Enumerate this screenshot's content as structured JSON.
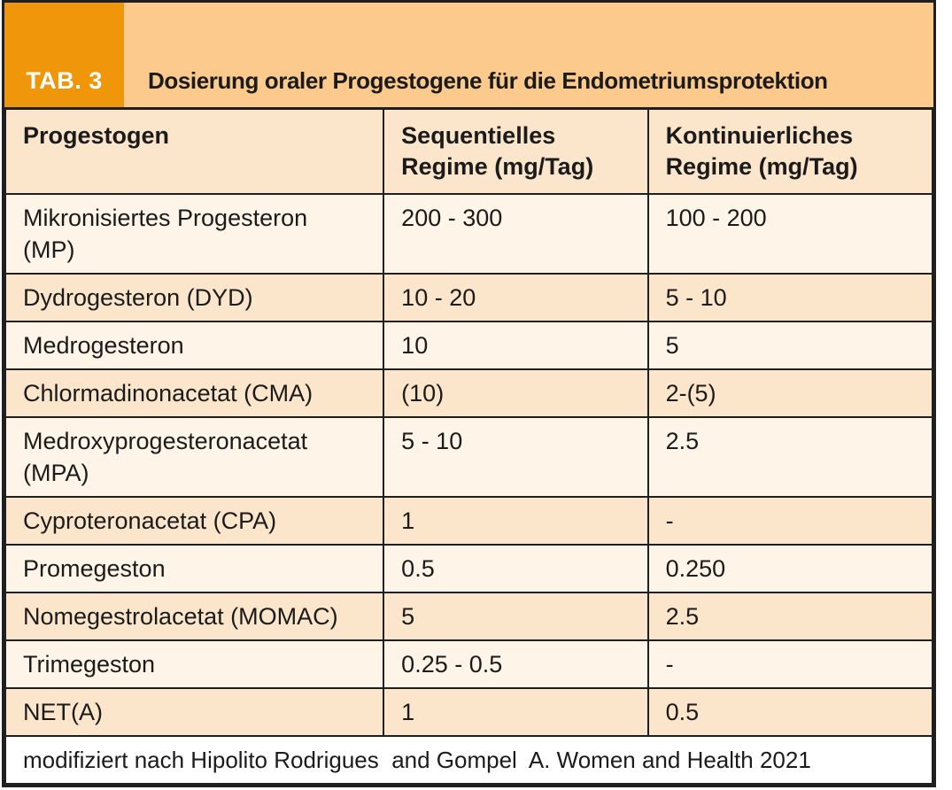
{
  "header": {
    "tab_label": "TAB. 3",
    "title": "Dosierung oraler Progestogene für die Endometriumsprotektion"
  },
  "table": {
    "columns": [
      "Progestogen",
      "Sequentielles\nRegime (mg/Tag)",
      "Kontinuierliches\nRegime (mg/Tag)"
    ],
    "rows": [
      {
        "name": "Mikronisiertes Progesteron\n(MP)",
        "sequential": "200 - 300",
        "continuous": "100 - 200"
      },
      {
        "name": "Dydrogesteron (DYD)",
        "sequential": "10 - 20",
        "continuous": "5 - 10"
      },
      {
        "name": "Medrogesteron",
        "sequential": "10",
        "continuous": "5"
      },
      {
        "name": "Chlormadinonacetat (CMA)",
        "sequential": "(10)",
        "continuous": "2-(5)"
      },
      {
        "name": "Medroxyprogesteronacetat\n(MPA)",
        "sequential": "5 - 10",
        "continuous": "2.5"
      },
      {
        "name": "Cyproteronacetat (CPA)",
        "sequential": "1",
        "continuous": "-"
      },
      {
        "name": "Promegeston",
        "sequential": "0.5",
        "continuous": "0.250"
      },
      {
        "name": "Nomegestrolacetat (MOMAC)",
        "sequential": "5",
        "continuous": "2.5"
      },
      {
        "name": "Trimegeston",
        "sequential": "0.25 - 0.5",
        "continuous": "-"
      },
      {
        "name": "NET(A)",
        "sequential": "1",
        "continuous": "0.5"
      }
    ],
    "footer_note": "modifiziert nach Hipolito Rodrigues  and Gompel  A. Women and Health 2021"
  },
  "colors": {
    "accent_orange": "#F0960B",
    "band_orange": "#FBCA8C",
    "row_peach": "#FBE6CC",
    "row_cream": "#FEF4E8",
    "border": "#1F1F1F",
    "text": "#1B1B1B"
  }
}
